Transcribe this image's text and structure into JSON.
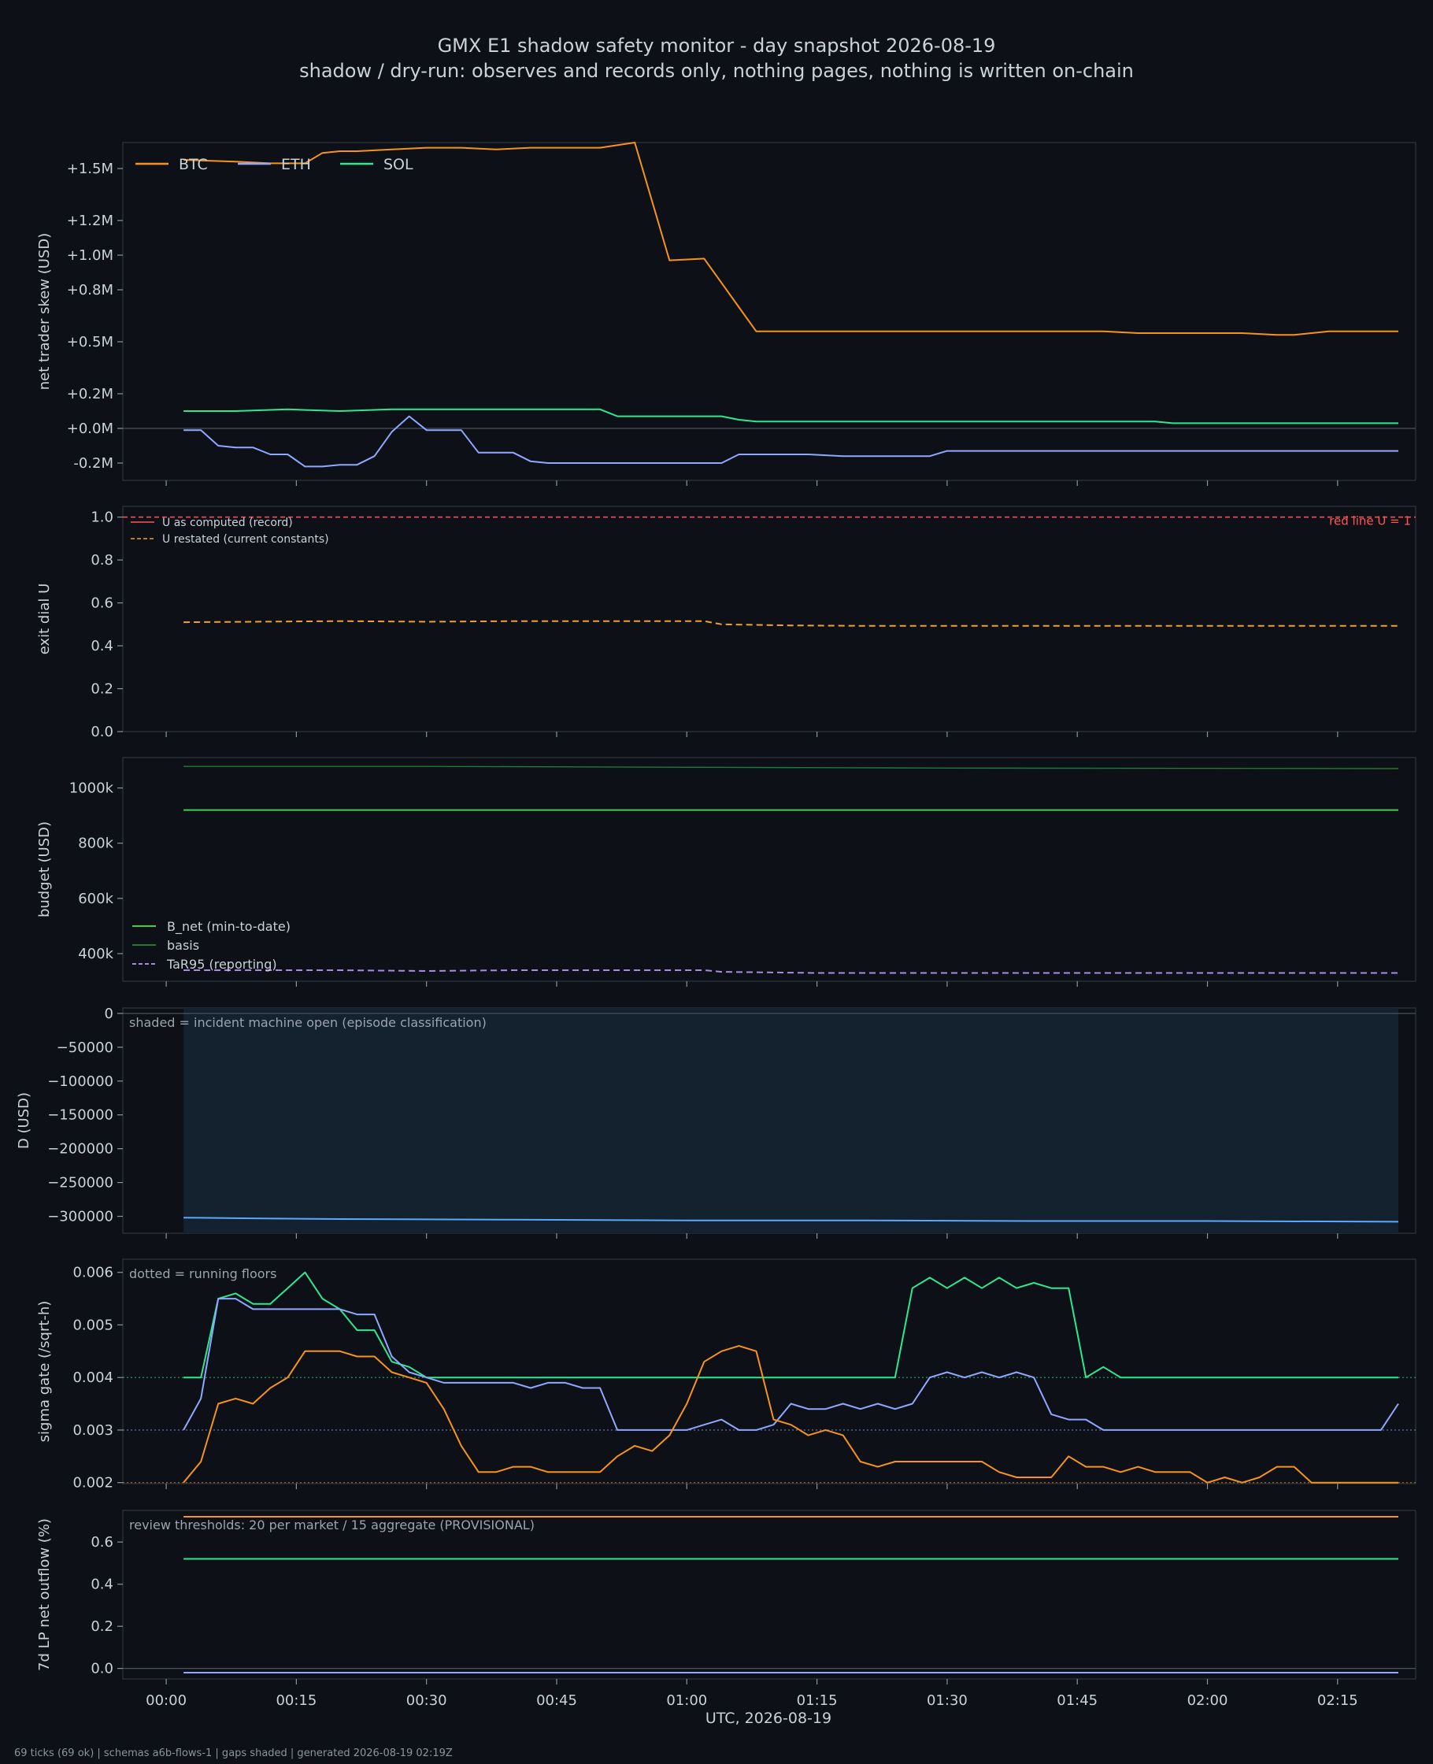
{
  "title": "GMX E1 shadow safety monitor - day snapshot 2026-08-19",
  "subtitle": "shadow / dry-run: observes and records only, nothing pages, nothing is written on-chain",
  "footer": "69 ticks (69 ok) | schemas a6b-flows-1 | gaps shaded | generated 2026-08-19 02:19Z",
  "xaxis": {
    "label": "UTC, 2026-08-19",
    "ticks": [
      0,
      15,
      30,
      45,
      60,
      75,
      90,
      105,
      120,
      135
    ],
    "tick_labels": [
      "00:00",
      "00:15",
      "00:30",
      "00:45",
      "01:00",
      "01:15",
      "01:30",
      "01:45",
      "02:00",
      "02:15"
    ],
    "range": [
      -5,
      144
    ]
  },
  "colors": {
    "background": "#0d1117",
    "panel": "#0d1117",
    "frame": "#30363d",
    "text": "#c9d1d9",
    "btc": "#f7931a",
    "eth": "#8fa8ff",
    "sol": "#2ee88f",
    "red": "#ff5555",
    "restated": "#f0a030",
    "green": "#3fcf4f",
    "basis": "#1e7a34",
    "tar": "#a98be0",
    "d": "#5aa8ff",
    "shade": "#14212e"
  },
  "chart_data": [
    {
      "type": "line",
      "ylabel": "net trader skew (USD)",
      "ylim": [
        -0.3,
        1.65
      ],
      "yticks": [
        -0.2,
        0.0,
        0.2,
        0.5,
        0.8,
        1.0,
        1.2,
        1.5
      ],
      "ytick_labels": [
        "-0.2M",
        "+0.0M",
        "+0.2M",
        "+0.5M",
        "+0.8M",
        "+1.0M",
        "+1.2M",
        "+1.5M"
      ],
      "zero_line": 0,
      "legend": "top-left",
      "legend_layout": "horizontal",
      "series": [
        {
          "name": "BTC",
          "color_key": "btc",
          "x": [
            2,
            8,
            12,
            16,
            18,
            20,
            22,
            26,
            30,
            34,
            38,
            42,
            46,
            50,
            54,
            58,
            62,
            64,
            66,
            68,
            72,
            76,
            80,
            84,
            88,
            92,
            96,
            100,
            104,
            108,
            112,
            116,
            120,
            124,
            128,
            130,
            134,
            138,
            142
          ],
          "y": [
            1.55,
            1.54,
            1.53,
            1.53,
            1.59,
            1.6,
            1.6,
            1.61,
            1.62,
            1.62,
            1.61,
            1.62,
            1.62,
            1.62,
            1.65,
            0.97,
            0.98,
            0.84,
            0.7,
            0.56,
            0.56,
            0.56,
            0.56,
            0.56,
            0.56,
            0.56,
            0.56,
            0.56,
            0.56,
            0.56,
            0.55,
            0.55,
            0.55,
            0.55,
            0.54,
            0.54,
            0.56,
            0.56,
            0.56
          ]
        },
        {
          "name": "ETH",
          "color_key": "eth",
          "x": [
            2,
            4,
            6,
            8,
            10,
            12,
            14,
            16,
            18,
            20,
            22,
            24,
            26,
            28,
            30,
            32,
            34,
            36,
            38,
            40,
            42,
            44,
            46,
            48,
            52,
            56,
            60,
            62,
            64,
            66,
            70,
            74,
            78,
            82,
            86,
            88,
            90,
            94,
            100,
            110,
            120,
            130,
            142
          ],
          "y": [
            -0.01,
            -0.01,
            -0.1,
            -0.11,
            -0.11,
            -0.15,
            -0.15,
            -0.22,
            -0.22,
            -0.21,
            -0.21,
            -0.16,
            -0.02,
            0.07,
            -0.01,
            -0.01,
            -0.01,
            -0.14,
            -0.14,
            -0.14,
            -0.19,
            -0.2,
            -0.2,
            -0.2,
            -0.2,
            -0.2,
            -0.2,
            -0.2,
            -0.2,
            -0.15,
            -0.15,
            -0.15,
            -0.16,
            -0.16,
            -0.16,
            -0.16,
            -0.13,
            -0.13,
            -0.13,
            -0.13,
            -0.13,
            -0.13,
            -0.13
          ]
        },
        {
          "name": "SOL",
          "color_key": "sol",
          "x": [
            2,
            8,
            14,
            20,
            26,
            32,
            38,
            44,
            50,
            52,
            56,
            60,
            64,
            66,
            68,
            72,
            80,
            86,
            90,
            96,
            100,
            108,
            114,
            116,
            124,
            132,
            142
          ],
          "y": [
            0.1,
            0.1,
            0.11,
            0.1,
            0.11,
            0.11,
            0.11,
            0.11,
            0.11,
            0.07,
            0.07,
            0.07,
            0.07,
            0.05,
            0.04,
            0.04,
            0.04,
            0.04,
            0.04,
            0.04,
            0.04,
            0.04,
            0.04,
            0.03,
            0.03,
            0.03,
            0.03
          ]
        }
      ]
    },
    {
      "type": "line",
      "ylabel": "exit dial U",
      "ylim": [
        0.0,
        1.05
      ],
      "yticks": [
        0.0,
        0.2,
        0.4,
        0.6,
        0.8,
        1.0
      ],
      "ytick_labels": [
        "0.0",
        "0.2",
        "0.4",
        "0.6",
        "0.8",
        "1.0"
      ],
      "legend": "top-left",
      "series": [
        {
          "name": "U as computed (record)",
          "color_key": "red",
          "style": "solid",
          "legend_only": true,
          "x": [],
          "y": []
        },
        {
          "name": "U restated (current constants)",
          "color_key": "restated",
          "style": "dashed",
          "x": [
            2,
            10,
            20,
            30,
            40,
            50,
            62,
            64,
            72,
            80,
            90,
            100,
            110,
            120,
            130,
            142
          ],
          "y": [
            0.51,
            0.512,
            0.515,
            0.512,
            0.515,
            0.515,
            0.515,
            0.5,
            0.495,
            0.493,
            0.493,
            0.493,
            0.493,
            0.493,
            0.493,
            0.493
          ]
        }
      ],
      "redline": {
        "value": 1.0,
        "label": "red line U = 1"
      }
    },
    {
      "type": "line",
      "ylabel": "budget (USD)",
      "ylim": [
        300000,
        1110000
      ],
      "yticks": [
        400000,
        600000,
        800000,
        1000000
      ],
      "ytick_labels": [
        "400k",
        "600k",
        "800k",
        "1000k"
      ],
      "legend": "bottom-left",
      "series": [
        {
          "name": "B_net (min-to-date)",
          "color_key": "green",
          "style": "solid",
          "x": [
            2,
            142
          ],
          "y": [
            920000,
            920000
          ]
        },
        {
          "name": "basis",
          "color_key": "basis",
          "style": "solid",
          "x": [
            2,
            30,
            60,
            90,
            120,
            142
          ],
          "y": [
            1078000,
            1078000,
            1075000,
            1072000,
            1071000,
            1070000
          ]
        },
        {
          "name": "TaR95 (reporting)",
          "color_key": "tar",
          "style": "dashed",
          "x": [
            2,
            20,
            30,
            40,
            62,
            64,
            75,
            100,
            142
          ],
          "y": [
            340000,
            340000,
            337000,
            340000,
            340000,
            334000,
            330000,
            330000,
            330000
          ]
        }
      ]
    },
    {
      "type": "line",
      "ylabel": "D (USD)",
      "ylim": [
        -325000,
        8000
      ],
      "yticks": [
        0,
        -50000,
        -100000,
        -150000,
        -200000,
        -250000,
        -300000
      ],
      "ytick_labels": [
        "0",
        "−50000",
        "−100000",
        "−150000",
        "−200000",
        "−250000",
        "−300000"
      ],
      "zero_line": 0,
      "annotation": "shaded = incident machine open (episode classification)",
      "shade": [
        2,
        142
      ],
      "series": [
        {
          "name": "D",
          "color_key": "d",
          "style": "solid",
          "x": [
            2,
            10,
            20,
            40,
            60,
            80,
            100,
            120,
            142
          ],
          "y": [
            -302000,
            -303000,
            -304000,
            -305000,
            -306000,
            -306000,
            -307000,
            -307000,
            -308000
          ]
        }
      ]
    },
    {
      "type": "line",
      "ylabel": "sigma gate (/sqrt-h)",
      "ylim": [
        0.00198,
        0.00625
      ],
      "yticks": [
        0.002,
        0.003,
        0.004,
        0.005,
        0.006
      ],
      "ytick_labels": [
        "0.002",
        "0.003",
        "0.004",
        "0.005",
        "0.006"
      ],
      "annotation": "dotted = running floors",
      "floors": [
        {
          "value": 0.004,
          "color_key": "sol"
        },
        {
          "value": 0.003,
          "color_key": "eth"
        },
        {
          "value": 0.002,
          "color_key": "btc"
        }
      ],
      "series": [
        {
          "name": "SOL",
          "color_key": "sol",
          "style": "solid",
          "x": [
            2,
            4,
            6,
            8,
            10,
            12,
            14,
            16,
            18,
            20,
            22,
            24,
            26,
            28,
            30,
            32,
            34,
            36,
            38,
            40,
            42,
            44,
            46,
            48,
            50,
            52,
            60,
            70,
            80,
            84,
            86,
            88,
            90,
            92,
            94,
            96,
            98,
            100,
            102,
            104,
            106,
            108,
            110,
            112,
            114,
            116,
            118,
            120,
            130,
            142
          ],
          "y": [
            0.004,
            0.004,
            0.0055,
            0.0056,
            0.0054,
            0.0054,
            0.0057,
            0.006,
            0.0055,
            0.0053,
            0.0049,
            0.0049,
            0.0043,
            0.0042,
            0.004,
            0.004,
            0.004,
            0.004,
            0.004,
            0.004,
            0.004,
            0.004,
            0.004,
            0.004,
            0.004,
            0.004,
            0.004,
            0.004,
            0.004,
            0.004,
            0.0057,
            0.0059,
            0.0057,
            0.0059,
            0.0057,
            0.0059,
            0.0057,
            0.0058,
            0.0057,
            0.0057,
            0.004,
            0.0042,
            0.004,
            0.004,
            0.004,
            0.004,
            0.004,
            0.004,
            0.004,
            0.004
          ]
        },
        {
          "name": "ETH",
          "color_key": "eth",
          "x": [
            2,
            4,
            6,
            8,
            10,
            12,
            14,
            16,
            18,
            20,
            22,
            24,
            26,
            28,
            30,
            32,
            34,
            36,
            38,
            40,
            42,
            44,
            46,
            48,
            50,
            52,
            56,
            60,
            62,
            64,
            66,
            68,
            70,
            72,
            74,
            76,
            78,
            80,
            82,
            84,
            86,
            88,
            90,
            92,
            94,
            96,
            98,
            100,
            102,
            104,
            106,
            108,
            110,
            120,
            130,
            138,
            140,
            142
          ],
          "y": [
            0.003,
            0.0036,
            0.0055,
            0.0055,
            0.0053,
            0.0053,
            0.0053,
            0.0053,
            0.0053,
            0.0053,
            0.0052,
            0.0052,
            0.0044,
            0.0041,
            0.004,
            0.0039,
            0.0039,
            0.0039,
            0.0039,
            0.0039,
            0.0038,
            0.0039,
            0.0039,
            0.0038,
            0.0038,
            0.003,
            0.003,
            0.003,
            0.0031,
            0.0032,
            0.003,
            0.003,
            0.0031,
            0.0035,
            0.0034,
            0.0034,
            0.0035,
            0.0034,
            0.0035,
            0.0034,
            0.0035,
            0.004,
            0.0041,
            0.004,
            0.0041,
            0.004,
            0.0041,
            0.004,
            0.0033,
            0.0032,
            0.0032,
            0.003,
            0.003,
            0.003,
            0.003,
            0.003,
            0.003,
            0.0035
          ]
        },
        {
          "name": "BTC",
          "color_key": "btc",
          "x": [
            2,
            4,
            6,
            8,
            10,
            12,
            14,
            16,
            18,
            20,
            22,
            24,
            26,
            28,
            30,
            32,
            34,
            36,
            38,
            40,
            42,
            44,
            46,
            48,
            50,
            52,
            54,
            56,
            58,
            60,
            62,
            64,
            66,
            68,
            70,
            72,
            74,
            76,
            78,
            80,
            82,
            84,
            86,
            88,
            90,
            92,
            94,
            96,
            98,
            100,
            102,
            104,
            106,
            108,
            110,
            112,
            114,
            116,
            118,
            120,
            122,
            124,
            126,
            128,
            130,
            132,
            134,
            136,
            138,
            140,
            142
          ],
          "y": [
            0.002,
            0.0024,
            0.0035,
            0.0036,
            0.0035,
            0.0038,
            0.004,
            0.0045,
            0.0045,
            0.0045,
            0.0044,
            0.0044,
            0.0041,
            0.004,
            0.0039,
            0.0034,
            0.0027,
            0.0022,
            0.0022,
            0.0023,
            0.0023,
            0.0022,
            0.0022,
            0.0022,
            0.0022,
            0.0025,
            0.0027,
            0.0026,
            0.0029,
            0.0035,
            0.0043,
            0.0045,
            0.0046,
            0.0045,
            0.0032,
            0.0031,
            0.0029,
            0.003,
            0.0029,
            0.0024,
            0.0023,
            0.0024,
            0.0024,
            0.0024,
            0.0024,
            0.0024,
            0.0024,
            0.0022,
            0.0021,
            0.0021,
            0.0021,
            0.0025,
            0.0023,
            0.0023,
            0.0022,
            0.0023,
            0.0022,
            0.0022,
            0.0022,
            0.002,
            0.0021,
            0.002,
            0.0021,
            0.0023,
            0.0023,
            0.002,
            0.002,
            0.002,
            0.002,
            0.002,
            0.002
          ]
        }
      ]
    },
    {
      "type": "line",
      "ylabel": "7d LP net outflow (%)",
      "ylim": [
        -0.05,
        0.75
      ],
      "yticks": [
        0.0,
        0.2,
        0.4,
        0.6
      ],
      "ytick_labels": [
        "0.0",
        "0.2",
        "0.4",
        "0.6"
      ],
      "zero_line": 0,
      "annotation": "review thresholds: 20 per market / 15 aggregate (PROVISIONAL)",
      "series": [
        {
          "name": "BTC",
          "color_key": "btc",
          "style": "solid",
          "x": [
            2,
            142
          ],
          "y": [
            0.72,
            0.72
          ]
        },
        {
          "name": "SOL",
          "color_key": "sol",
          "style": "solid",
          "x": [
            2,
            142
          ],
          "y": [
            0.52,
            0.52
          ]
        },
        {
          "name": "ETH",
          "color_key": "eth",
          "style": "solid",
          "x": [
            2,
            142
          ],
          "y": [
            -0.02,
            -0.02
          ]
        }
      ]
    }
  ]
}
